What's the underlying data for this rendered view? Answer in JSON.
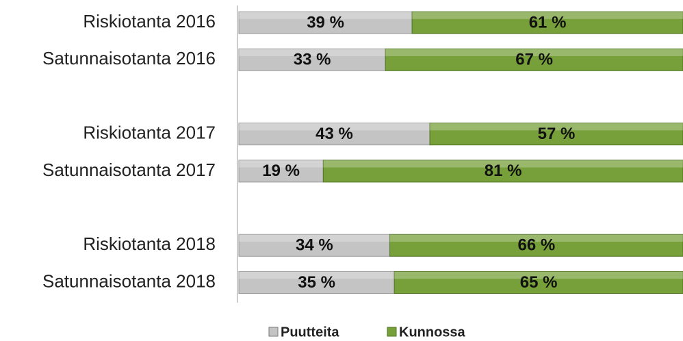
{
  "chart_data": {
    "type": "stacked-bar-horizontal",
    "categories": [
      "Riskiotanta 2016",
      "Satunnaisotanta 2016",
      null,
      "Riskiotanta 2017",
      "Satunnaisotanta 2017",
      null,
      "Riskiotanta 2018",
      "Satunnaisotanta 2018"
    ],
    "series": [
      {
        "name": "Puutteita",
        "color": "#c4c4c4",
        "values": [
          39,
          33,
          null,
          43,
          19,
          null,
          34,
          35
        ],
        "value_labels": [
          "39 %",
          "33 %",
          null,
          "43 %",
          "19 %",
          null,
          "34 %",
          "35 %"
        ]
      },
      {
        "name": "Kunnossa",
        "color": "#77a03a",
        "values": [
          61,
          67,
          null,
          57,
          81,
          null,
          66,
          65
        ],
        "value_labels": [
          "61 %",
          "67 %",
          null,
          "57 %",
          "81 %",
          null,
          "66 %",
          "65 %"
        ]
      }
    ],
    "xlim": [
      0,
      100
    ],
    "legend": "bottom"
  }
}
